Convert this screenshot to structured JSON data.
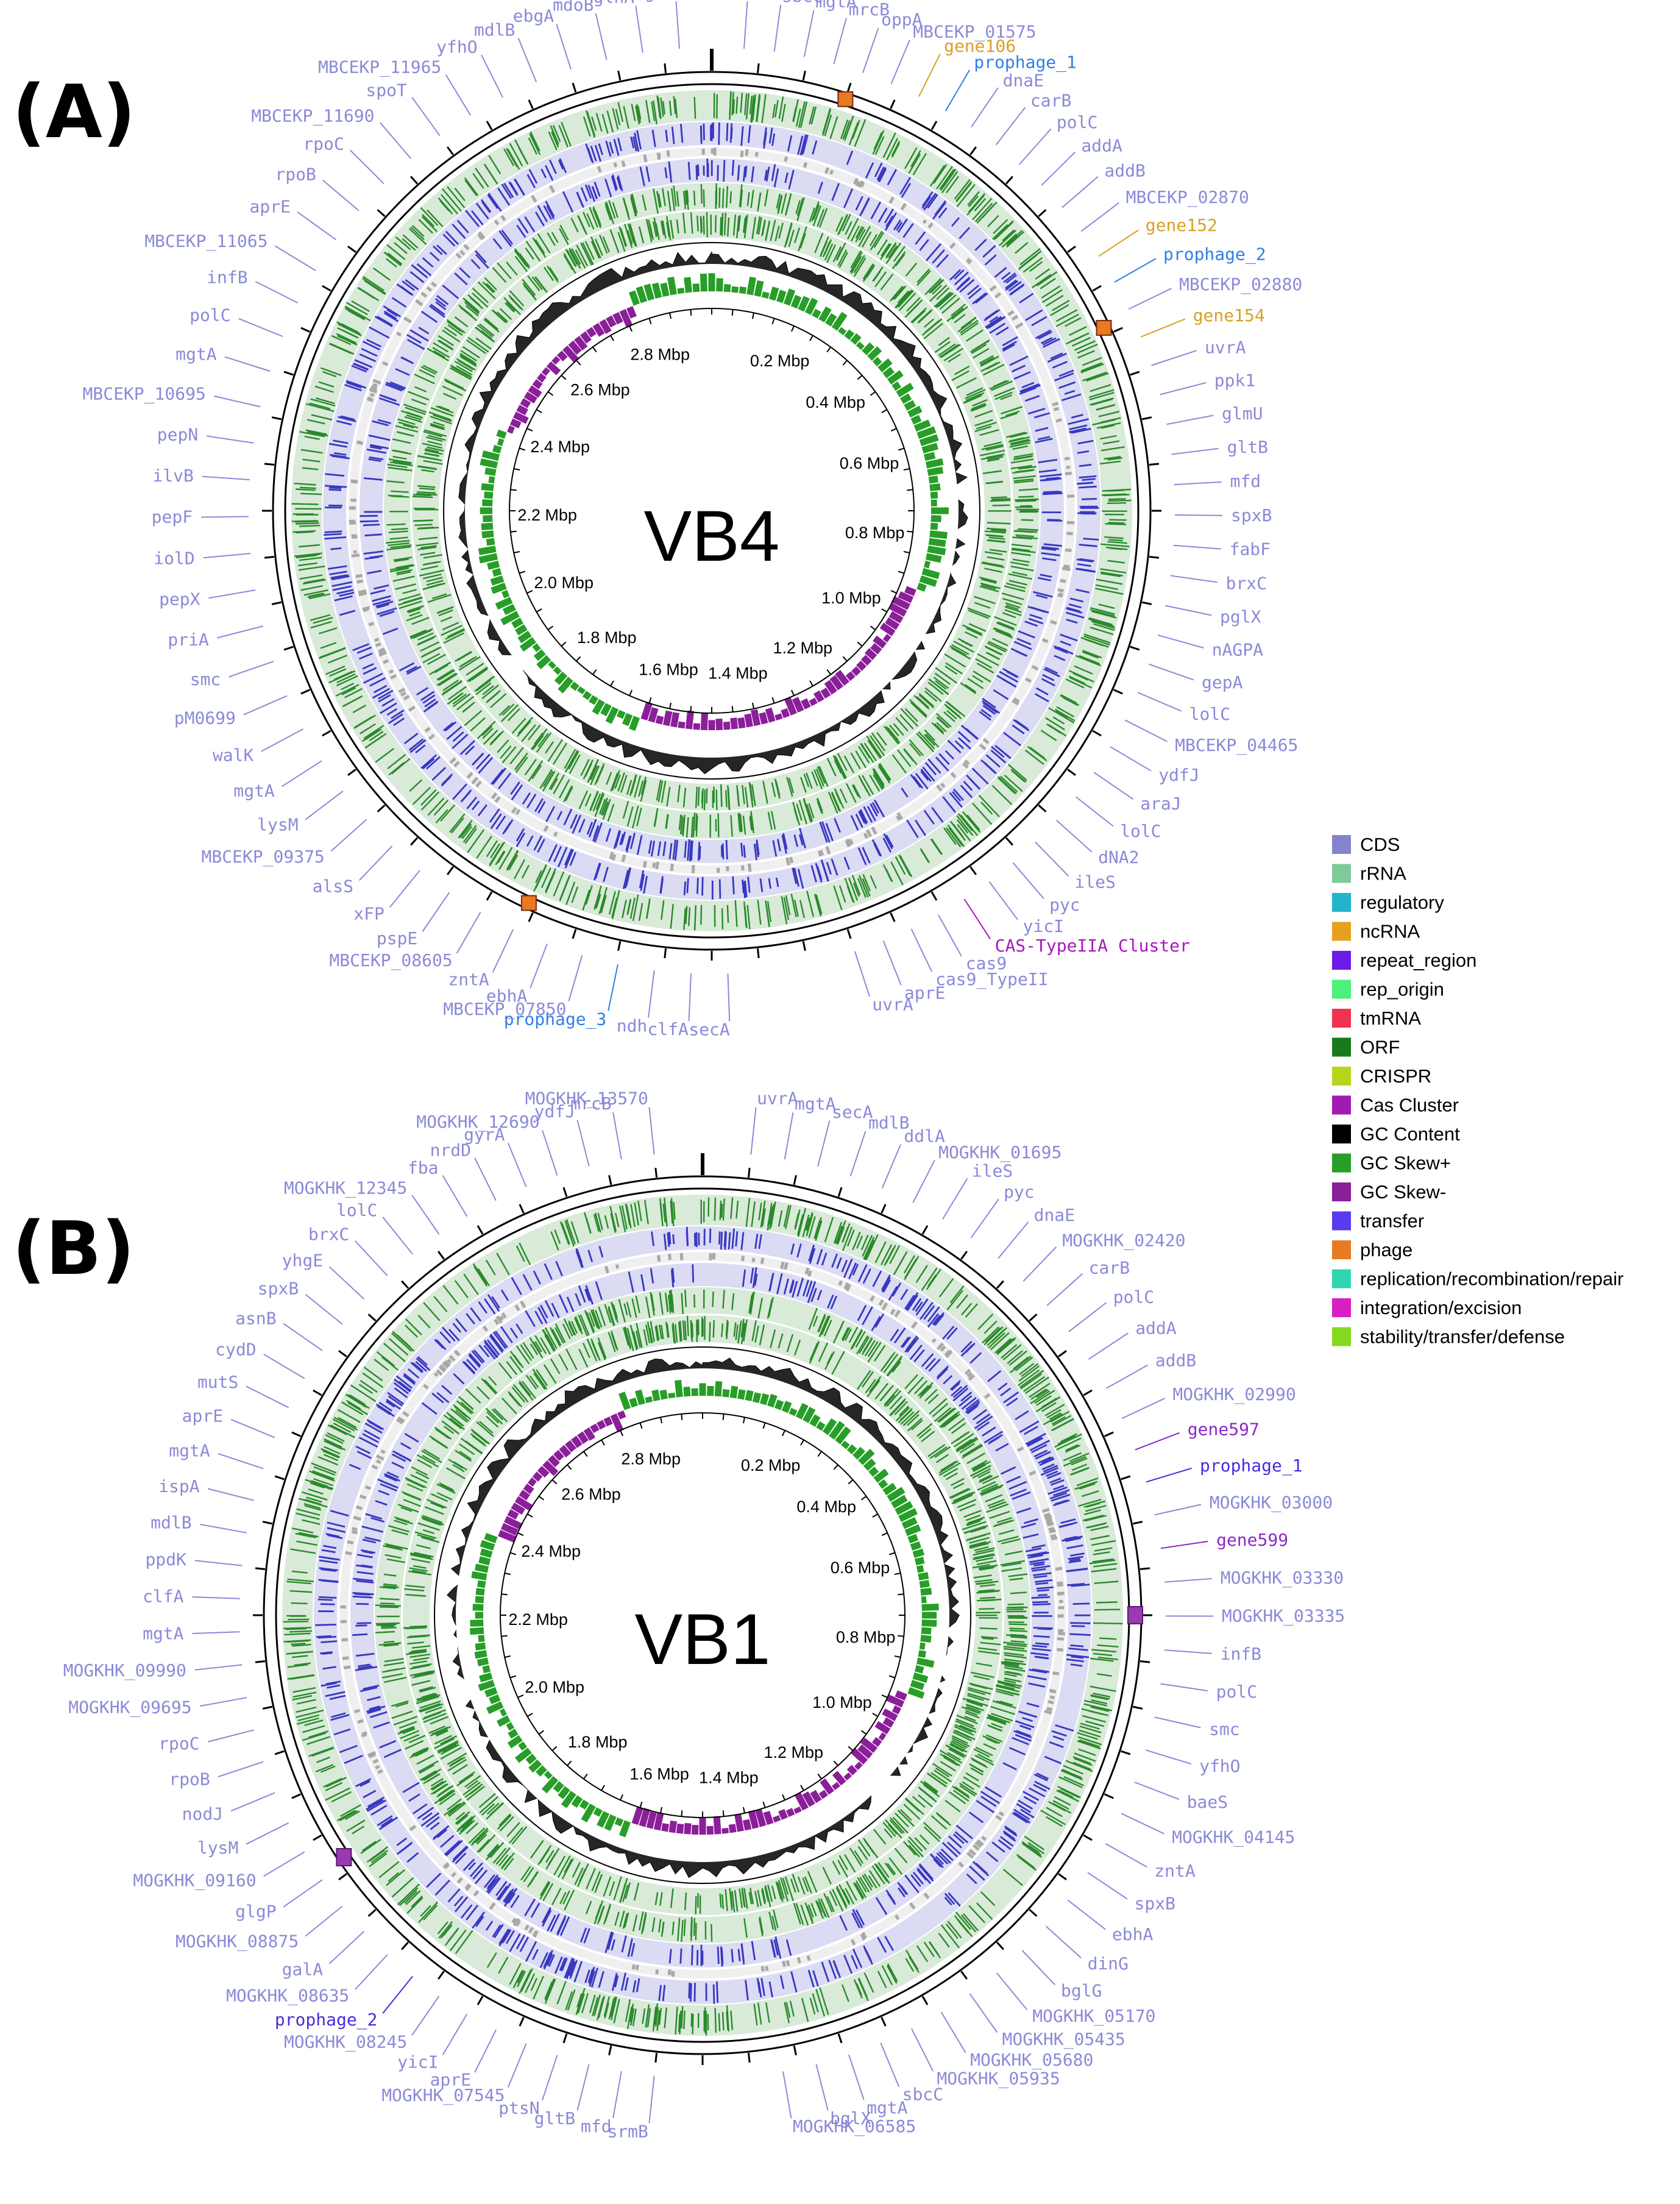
{
  "colors": {
    "CDS": "#8484cc",
    "rRNA": "#7fc99a",
    "regulatory": "#22b5c9",
    "ncRNA": "#e6a01e",
    "repeat_region": "#6a1be8",
    "rep_origin": "#4cf07a",
    "tmRNA": "#f0334f",
    "ORF": "#1a7a1a",
    "CRISPR": "#b6d61e",
    "Cas Cluster": "#a21ab1",
    "GC Content": "#000000",
    "GC Skew+": "#279e27",
    "GC Skew-": "#8b1e99",
    "transfer": "#5a3af0",
    "phage": "#e87a22",
    "replication/recombination/repair": "#2ed6b0",
    "integration/excision": "#d81fc4",
    "stability/transfer/defense": "#86d81c",
    "gene_label": "#8a8ad8",
    "prophage_label": "#2f80e8",
    "ncrna_label": "#d8a028",
    "cas_label": "#a41ab8",
    "ring_green": "#2a8a2a",
    "ring_blue": "#3838c0",
    "ring_grey": "#a8a8a8"
  },
  "legend": [
    {
      "label": "CDS",
      "color": "#8484cc"
    },
    {
      "label": "rRNA",
      "color": "#7fc99a"
    },
    {
      "label": "regulatory",
      "color": "#22b5c9"
    },
    {
      "label": "ncRNA",
      "color": "#e6a01e"
    },
    {
      "label": "repeat_region",
      "color": "#6a1be8"
    },
    {
      "label": "rep_origin",
      "color": "#4cf07a"
    },
    {
      "label": "tmRNA",
      "color": "#f0334f"
    },
    {
      "label": "ORF",
      "color": "#1a7a1a"
    },
    {
      "label": "CRISPR",
      "color": "#b6d61e"
    },
    {
      "label": "Cas Cluster",
      "color": "#a21ab1"
    },
    {
      "label": "GC Content",
      "color": "#000000"
    },
    {
      "label": "GC Skew+",
      "color": "#279e27"
    },
    {
      "label": "GC Skew-",
      "color": "#8b1e99"
    },
    {
      "label": "transfer",
      "color": "#5a3af0"
    },
    {
      "label": "phage",
      "color": "#e87a22"
    },
    {
      "label": "replication/recombination/repair",
      "color": "#2ed6b0"
    },
    {
      "label": "integration/excision",
      "color": "#d81fc4"
    },
    {
      "label": "stability/transfer/defense",
      "color": "#86d81c"
    }
  ],
  "panels": [
    {
      "id": "A",
      "label": "(A)",
      "title": "VB4",
      "mbp_labels": [
        "0.2 Mbp",
        "0.4 Mbp",
        "0.6 Mbp",
        "0.8 Mbp",
        "1.0 Mbp",
        "1.2 Mbp",
        "1.4 Mbp",
        "1.6 Mbp",
        "1.8 Mbp",
        "2.0 Mbp",
        "2.2 Mbp",
        "2.4 Mbp",
        "2.6 Mbp",
        "2.8 Mbp"
      ],
      "right_genes": [
        {
          "text": "metE",
          "kind": "gene"
        },
        {
          "text": "sbcC",
          "kind": "gene"
        },
        {
          "text": "mgtA",
          "kind": "gene"
        },
        {
          "text": "mrcB",
          "kind": "gene"
        },
        {
          "text": "oppA",
          "kind": "gene"
        },
        {
          "text": "MBCEKP_01575",
          "kind": "gene"
        },
        {
          "text": "gene106",
          "kind": "ncrna"
        },
        {
          "text": "prophage_1",
          "kind": "prophage"
        },
        {
          "text": "dnaE",
          "kind": "gene"
        },
        {
          "text": "carB",
          "kind": "gene"
        },
        {
          "text": "polC",
          "kind": "gene"
        },
        {
          "text": "addA",
          "kind": "gene"
        },
        {
          "text": "addB",
          "kind": "gene"
        },
        {
          "text": "MBCEKP_02870",
          "kind": "gene"
        },
        {
          "text": "gene152",
          "kind": "ncrna"
        },
        {
          "text": "prophage_2",
          "kind": "prophage"
        },
        {
          "text": "MBCEKP_02880",
          "kind": "gene"
        },
        {
          "text": "gene154",
          "kind": "ncrna"
        },
        {
          "text": "uvrA",
          "kind": "gene"
        },
        {
          "text": "ppk1",
          "kind": "gene"
        },
        {
          "text": "glmU",
          "kind": "gene"
        },
        {
          "text": "gltB",
          "kind": "gene"
        },
        {
          "text": "mfd",
          "kind": "gene"
        },
        {
          "text": "spxB",
          "kind": "gene"
        },
        {
          "text": "fabF",
          "kind": "gene"
        },
        {
          "text": "brxC",
          "kind": "gene"
        },
        {
          "text": "pglX",
          "kind": "gene"
        },
        {
          "text": "nAGPA",
          "kind": "gene"
        },
        {
          "text": "gepA",
          "kind": "gene"
        },
        {
          "text": "lolC",
          "kind": "gene"
        },
        {
          "text": "MBCEKP_04465",
          "kind": "gene"
        },
        {
          "text": "ydfJ",
          "kind": "gene"
        },
        {
          "text": "araJ",
          "kind": "gene"
        },
        {
          "text": "lolC",
          "kind": "gene"
        },
        {
          "text": "dNA2",
          "kind": "gene"
        },
        {
          "text": "ileS",
          "kind": "gene"
        },
        {
          "text": "pyc",
          "kind": "gene"
        },
        {
          "text": "yicI",
          "kind": "gene"
        },
        {
          "text": "CAS-TypeIIA Cluster",
          "kind": "cas"
        },
        {
          "text": "cas9",
          "kind": "gene"
        },
        {
          "text": "cas9_TypeII",
          "kind": "gene"
        },
        {
          "text": "aprE",
          "kind": "gene"
        },
        {
          "text": "uvrA",
          "kind": "gene"
        }
      ],
      "left_genes": [
        {
          "text": "secA",
          "kind": "gene"
        },
        {
          "text": "clfA",
          "kind": "gene"
        },
        {
          "text": "ndh",
          "kind": "gene"
        },
        {
          "text": "prophage_3",
          "kind": "prophage"
        },
        {
          "text": "MBCEKP_07850",
          "kind": "gene"
        },
        {
          "text": "ebhA",
          "kind": "gene"
        },
        {
          "text": "zntA",
          "kind": "gene"
        },
        {
          "text": "MBCEKP_08605",
          "kind": "gene"
        },
        {
          "text": "pspE",
          "kind": "gene"
        },
        {
          "text": "xFP",
          "kind": "gene"
        },
        {
          "text": "alsS",
          "kind": "gene"
        },
        {
          "text": "MBCEKP_09375",
          "kind": "gene"
        },
        {
          "text": "lysM",
          "kind": "gene"
        },
        {
          "text": "mgtA",
          "kind": "gene"
        },
        {
          "text": "walK",
          "kind": "gene"
        },
        {
          "text": "pM0699",
          "kind": "gene"
        },
        {
          "text": "smc",
          "kind": "gene"
        },
        {
          "text": "priA",
          "kind": "gene"
        },
        {
          "text": "pepX",
          "kind": "gene"
        },
        {
          "text": "iolD",
          "kind": "gene"
        },
        {
          "text": "pepF",
          "kind": "gene"
        },
        {
          "text": "ilvB",
          "kind": "gene"
        },
        {
          "text": "pepN",
          "kind": "gene"
        },
        {
          "text": "MBCEKP_10695",
          "kind": "gene"
        },
        {
          "text": "mgtA",
          "kind": "gene"
        },
        {
          "text": "polC",
          "kind": "gene"
        },
        {
          "text": "infB",
          "kind": "gene"
        },
        {
          "text": "MBCEKP_11065",
          "kind": "gene"
        },
        {
          "text": "aprE",
          "kind": "gene"
        },
        {
          "text": "rpoB",
          "kind": "gene"
        },
        {
          "text": "rpoC",
          "kind": "gene"
        },
        {
          "text": "MBCEKP_11690",
          "kind": "gene"
        },
        {
          "text": "spoT",
          "kind": "gene"
        },
        {
          "text": "MBCEKP_11965",
          "kind": "gene"
        },
        {
          "text": "yfhO",
          "kind": "gene"
        },
        {
          "text": "mdlB",
          "kind": "gene"
        },
        {
          "text": "ebgA",
          "kind": "gene"
        },
        {
          "text": "mdoB",
          "kind": "gene"
        },
        {
          "text": "glnA",
          "kind": "gene"
        },
        {
          "text": "mgtA",
          "kind": "gene"
        }
      ]
    },
    {
      "id": "B",
      "label": "(B)",
      "title": "VB1",
      "mbp_labels": [
        "0.2 Mbp",
        "0.4 Mbp",
        "0.6 Mbp",
        "0.8 Mbp",
        "1.0 Mbp",
        "1.2 Mbp",
        "1.4 Mbp",
        "1.6 Mbp",
        "1.8 Mbp",
        "2.0 Mbp",
        "2.2 Mbp",
        "2.4 Mbp",
        "2.6 Mbp",
        "2.8 Mbp"
      ],
      "right_genes": [
        {
          "text": "uvrA",
          "kind": "gene"
        },
        {
          "text": "mgtA",
          "kind": "gene"
        },
        {
          "text": "secA",
          "kind": "gene"
        },
        {
          "text": "mdlB",
          "kind": "gene"
        },
        {
          "text": "ddlA",
          "kind": "gene"
        },
        {
          "text": "MOGKHK_01695",
          "kind": "gene"
        },
        {
          "text": "ileS",
          "kind": "gene"
        },
        {
          "text": "pyc",
          "kind": "gene"
        },
        {
          "text": "dnaE",
          "kind": "gene"
        },
        {
          "text": "MOGKHK_02420",
          "kind": "gene"
        },
        {
          "text": "carB",
          "kind": "gene"
        },
        {
          "text": "polC",
          "kind": "gene"
        },
        {
          "text": "addA",
          "kind": "gene"
        },
        {
          "text": "addB",
          "kind": "gene"
        },
        {
          "text": "MOGKHK_02990",
          "kind": "gene"
        },
        {
          "text": "gene597",
          "kind": "vb1phage"
        },
        {
          "text": "prophage_1",
          "kind": "vb1prophage"
        },
        {
          "text": "MOGKHK_03000",
          "kind": "gene"
        },
        {
          "text": "gene599",
          "kind": "vb1phage"
        },
        {
          "text": "MOGKHK_03330",
          "kind": "gene"
        },
        {
          "text": "MOGKHK_03335",
          "kind": "gene"
        },
        {
          "text": "infB",
          "kind": "gene"
        },
        {
          "text": "polC",
          "kind": "gene"
        },
        {
          "text": "smc",
          "kind": "gene"
        },
        {
          "text": "yfhO",
          "kind": "gene"
        },
        {
          "text": "baeS",
          "kind": "gene"
        },
        {
          "text": "MOGKHK_04145",
          "kind": "gene"
        },
        {
          "text": "zntA",
          "kind": "gene"
        },
        {
          "text": "spxB",
          "kind": "gene"
        },
        {
          "text": "ebhA",
          "kind": "gene"
        },
        {
          "text": "dinG",
          "kind": "gene"
        },
        {
          "text": "bglG",
          "kind": "gene"
        },
        {
          "text": "MOGKHK_05170",
          "kind": "gene"
        },
        {
          "text": "MOGKHK_05435",
          "kind": "gene"
        },
        {
          "text": "MOGKHK_05680",
          "kind": "gene"
        },
        {
          "text": "MOGKHK_05935",
          "kind": "gene"
        },
        {
          "text": "sbcC",
          "kind": "gene"
        },
        {
          "text": "mgtA",
          "kind": "gene"
        },
        {
          "text": "bglX",
          "kind": "gene"
        },
        {
          "text": "MOGKHK_06585",
          "kind": "gene"
        }
      ],
      "left_genes": [
        {
          "text": "srmB",
          "kind": "gene"
        },
        {
          "text": "mfd",
          "kind": "gene"
        },
        {
          "text": "gltB",
          "kind": "gene"
        },
        {
          "text": "ptsN",
          "kind": "gene"
        },
        {
          "text": "MOGKHK_07545",
          "kind": "gene"
        },
        {
          "text": "aprE",
          "kind": "gene"
        },
        {
          "text": "yicI",
          "kind": "gene"
        },
        {
          "text": "MOGKHK_08245",
          "kind": "gene"
        },
        {
          "text": "prophage_2",
          "kind": "vb1prophage"
        },
        {
          "text": "MOGKHK_08635",
          "kind": "gene"
        },
        {
          "text": "galA",
          "kind": "gene"
        },
        {
          "text": "MOGKHK_08875",
          "kind": "gene"
        },
        {
          "text": "glgP",
          "kind": "gene"
        },
        {
          "text": "MOGKHK_09160",
          "kind": "gene"
        },
        {
          "text": "lysM",
          "kind": "gene"
        },
        {
          "text": "nodJ",
          "kind": "gene"
        },
        {
          "text": "rpoB",
          "kind": "gene"
        },
        {
          "text": "rpoC",
          "kind": "gene"
        },
        {
          "text": "MOGKHK_09695",
          "kind": "gene"
        },
        {
          "text": "MOGKHK_09990",
          "kind": "gene"
        },
        {
          "text": "mgtA",
          "kind": "gene"
        },
        {
          "text": "clfA",
          "kind": "gene"
        },
        {
          "text": "ppdK",
          "kind": "gene"
        },
        {
          "text": "mdlB",
          "kind": "gene"
        },
        {
          "text": "ispA",
          "kind": "gene"
        },
        {
          "text": "mgtA",
          "kind": "gene"
        },
        {
          "text": "aprE",
          "kind": "gene"
        },
        {
          "text": "mutS",
          "kind": "gene"
        },
        {
          "text": "cydD",
          "kind": "gene"
        },
        {
          "text": "asnB",
          "kind": "gene"
        },
        {
          "text": "spxB",
          "kind": "gene"
        },
        {
          "text": "yhgE",
          "kind": "gene"
        },
        {
          "text": "brxC",
          "kind": "gene"
        },
        {
          "text": "lolC",
          "kind": "gene"
        },
        {
          "text": "MOGKHK_12345",
          "kind": "gene"
        },
        {
          "text": "fba",
          "kind": "gene"
        },
        {
          "text": "nrdD",
          "kind": "gene"
        },
        {
          "text": "gyrA",
          "kind": "gene"
        },
        {
          "text": "MOGKHK_12690",
          "kind": "gene"
        },
        {
          "text": "ydfJ",
          "kind": "gene"
        },
        {
          "text": "mrcB",
          "kind": "gene"
        },
        {
          "text": "MOGKHK_13570",
          "kind": "gene"
        }
      ]
    }
  ]
}
